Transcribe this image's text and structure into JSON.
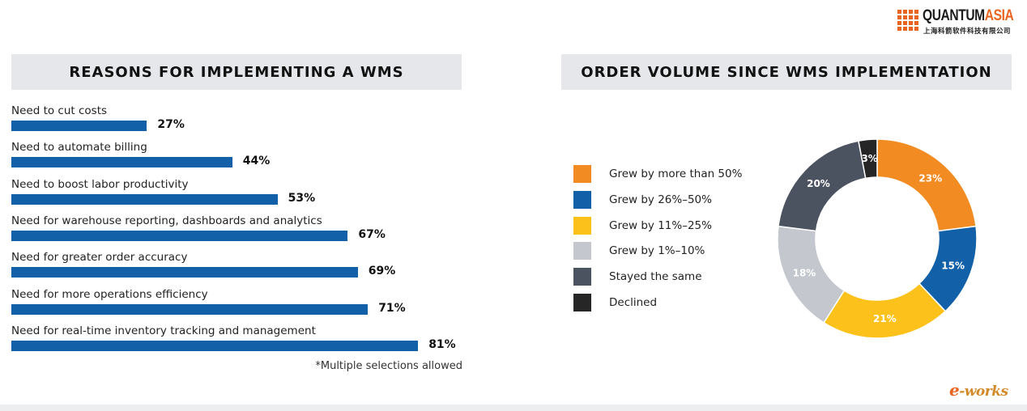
{
  "logo": {
    "word_main": "QUANTUM",
    "word_accent": "ASIA",
    "subtitle": "上海科箭软件科技有限公司",
    "accent_color": "#e8641f"
  },
  "left_panel": {
    "title": "REASONS FOR IMPLEMENTING A WMS",
    "footnote": "*Multiple selections allowed"
  },
  "right_panel": {
    "title": "ORDER VOLUME SINCE WMS IMPLEMENTATION"
  },
  "watermark": {
    "e": "e",
    "rest": "-works"
  },
  "chart_data": [
    {
      "type": "bar",
      "orientation": "horizontal",
      "title": "REASONS FOR IMPLEMENTING A WMS",
      "categories": [
        "Need to cut costs",
        "Need to automate billing",
        "Need to boost labor productivity",
        "Need for warehouse reporting, dashboards and analytics",
        "Need for greater order accuracy",
        "Need for more operations efficiency",
        "Need for real-time inventory tracking and management"
      ],
      "values": [
        27,
        44,
        53,
        67,
        69,
        71,
        81
      ],
      "value_labels": [
        "27%",
        "44%",
        "53%",
        "67%",
        "69%",
        "71%",
        "81%"
      ],
      "unit": "%",
      "bar_color": "#1160a8",
      "grid": false,
      "footnote": "*Multiple selections allowed"
    },
    {
      "type": "pie",
      "variant": "donut",
      "title": "ORDER VOLUME SINCE WMS IMPLEMENTATION",
      "legend_position": "left",
      "slices": [
        {
          "label": "Grew by more than 50%",
          "value": 23,
          "display": "23%",
          "color": "#f28b22"
        },
        {
          "label": "Grew by 26%–50%",
          "value": 15,
          "display": "15%",
          "color": "#1160a8"
        },
        {
          "label": "Grew by 11%–25%",
          "value": 21,
          "display": "21%",
          "color": "#fcc21b"
        },
        {
          "label": "Grew by 1%–10%",
          "value": 18,
          "display": "18%",
          "color": "#c4c7ce"
        },
        {
          "label": "Stayed the same",
          "value": 20,
          "display": "20%",
          "color": "#4b5260"
        },
        {
          "label": "Declined",
          "value": 3,
          "display": "3%",
          "color": "#262626"
        }
      ]
    }
  ]
}
